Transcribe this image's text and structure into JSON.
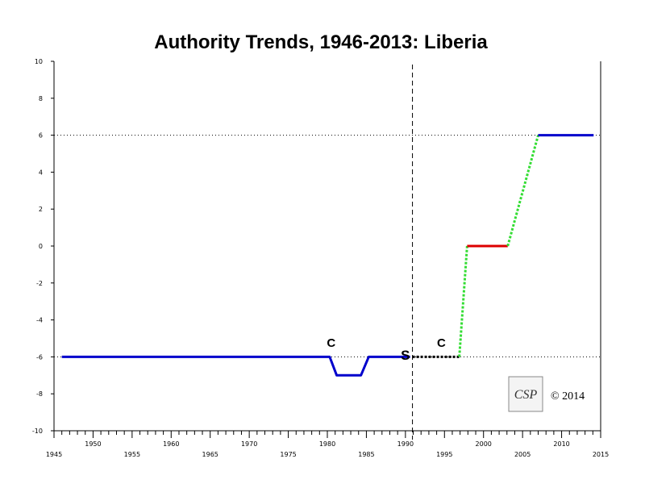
{
  "chart_data": {
    "type": "line",
    "title": "Authority Trends, 1946-2013: Liberia",
    "xlim": [
      1945,
      2015
    ],
    "ylim": [
      -10,
      10
    ],
    "x_major_ticks": [
      1945,
      1950,
      1955,
      1960,
      1965,
      1970,
      1975,
      1980,
      1985,
      1990,
      1995,
      2000,
      2005,
      2010,
      2015
    ],
    "y_ticks": [
      10,
      8,
      6,
      4,
      2,
      0,
      -2,
      -4,
      -6,
      -8,
      -10
    ],
    "reference_lines_y": [
      6,
      -6
    ],
    "event_line_x": 1990.9,
    "segments": [
      {
        "style": "regime",
        "color": "#0000cc",
        "points": [
          [
            1946,
            -6
          ],
          [
            1980.3,
            -6
          ],
          [
            1981.2,
            -7
          ],
          [
            1984.3,
            -7
          ],
          [
            1985.3,
            -6
          ],
          [
            1990.6,
            -6
          ]
        ]
      },
      {
        "style": "interregnum",
        "color": "#000000",
        "points": [
          [
            1990.9,
            -6
          ],
          [
            1996.9,
            -6
          ]
        ]
      },
      {
        "style": "transition",
        "color": "#33dd33",
        "points": [
          [
            1996.9,
            -6
          ],
          [
            1997.9,
            0
          ]
        ]
      },
      {
        "style": "regime",
        "color": "#dd0000",
        "points": [
          [
            1997.9,
            0
          ],
          [
            2003.1,
            0
          ]
        ]
      },
      {
        "style": "transition",
        "color": "#33dd33",
        "points": [
          [
            2003.1,
            0
          ],
          [
            2007.0,
            6
          ]
        ]
      },
      {
        "style": "regime",
        "color": "#0000cc",
        "points": [
          [
            2007.0,
            6
          ],
          [
            2014.1,
            6
          ]
        ]
      }
    ],
    "annotations": [
      {
        "text": "C",
        "x": 1980.5,
        "y": -5.45,
        "kind": "marker"
      },
      {
        "text": "C",
        "x": 1994.6,
        "y": -5.45,
        "kind": "marker"
      },
      {
        "text": "S",
        "x": 1990.0,
        "y": -6.15,
        "kind": "marker-s"
      }
    ]
  },
  "logo": {
    "text": "CSP"
  },
  "copyright": "© 2014"
}
